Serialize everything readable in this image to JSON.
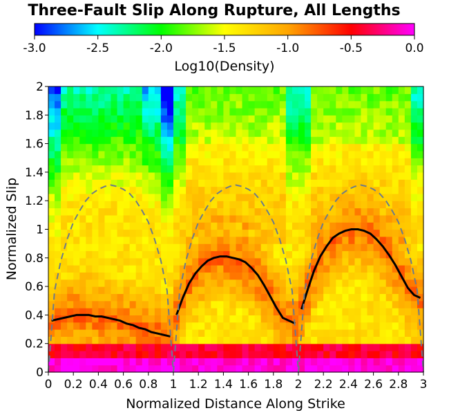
{
  "chart_data": {
    "type": "heatmap",
    "title": "Three-Fault Slip Along Rupture, All Lengths",
    "xlabel": "Normalized Distance Along Strike",
    "ylabel": "Normalized Slip",
    "xlim": [
      0,
      3
    ],
    "ylim": [
      0,
      2
    ],
    "x_ticks": [
      "0",
      "0.2",
      "0.4",
      "0.6",
      "0.8",
      "1",
      "1.2",
      "1.4",
      "1.6",
      "1.8",
      "2",
      "2.2",
      "2.4",
      "2.6",
      "2.8",
      "3"
    ],
    "y_ticks": [
      "0",
      "0.2",
      "0.4",
      "0.6",
      "0.8",
      "1",
      "1.2",
      "1.4",
      "1.6",
      "1.8",
      "2"
    ],
    "grid": false,
    "colorbar": {
      "label": "Log10(Density)",
      "range": [
        -3.0,
        0.0
      ],
      "ticks": [
        "-3.0",
        "-2.5",
        "-2.0",
        "-1.5",
        "-1.0",
        "-0.5",
        "0.0"
      ],
      "placement": "top",
      "colormap": [
        "#0000ff",
        "#00ffff",
        "#00ff00",
        "#ffff00",
        "#ffa500",
        "#ff0000",
        "#ff00ff"
      ]
    },
    "segments": [
      {
        "x0": 0,
        "x1": 1
      },
      {
        "x0": 1,
        "x1": 2
      },
      {
        "x0": 2,
        "x1": 3
      }
    ],
    "series": [
      {
        "style": "solid",
        "color": "#000000",
        "x": [
          0.025,
          0.075,
          0.125,
          0.175,
          0.225,
          0.275,
          0.325,
          0.375,
          0.425,
          0.475,
          0.525,
          0.575,
          0.625,
          0.675,
          0.725,
          0.775,
          0.825,
          0.875,
          0.925,
          0.975,
          1.025,
          1.075,
          1.125,
          1.175,
          1.225,
          1.275,
          1.325,
          1.375,
          1.425,
          1.475,
          1.525,
          1.575,
          1.625,
          1.675,
          1.725,
          1.775,
          1.825,
          1.875,
          1.925,
          1.975,
          2.025,
          2.075,
          2.125,
          2.175,
          2.225,
          2.275,
          2.325,
          2.375,
          2.425,
          2.475,
          2.525,
          2.575,
          2.625,
          2.675,
          2.725,
          2.775,
          2.825,
          2.875,
          2.925,
          2.975
        ],
        "y": [
          0.36,
          0.37,
          0.38,
          0.39,
          0.4,
          0.4,
          0.4,
          0.39,
          0.39,
          0.38,
          0.37,
          0.36,
          0.34,
          0.33,
          0.31,
          0.3,
          0.28,
          0.27,
          0.26,
          0.25,
          0.4,
          0.52,
          0.62,
          0.69,
          0.74,
          0.78,
          0.8,
          0.81,
          0.81,
          0.8,
          0.79,
          0.77,
          0.73,
          0.68,
          0.61,
          0.53,
          0.45,
          0.38,
          0.36,
          0.34,
          0.44,
          0.58,
          0.71,
          0.81,
          0.88,
          0.94,
          0.97,
          0.99,
          1.0,
          1.0,
          0.99,
          0.97,
          0.93,
          0.88,
          0.82,
          0.75,
          0.67,
          0.59,
          0.54,
          0.52
        ]
      },
      {
        "style": "dashed",
        "color": "#6b7b8c",
        "x": [
          0.0,
          0.05,
          0.1,
          0.15,
          0.2,
          0.25,
          0.3,
          0.35,
          0.4,
          0.45,
          0.5,
          0.55,
          0.6,
          0.65,
          0.7,
          0.75,
          0.8,
          0.85,
          0.9,
          0.95,
          1.0,
          1.05,
          1.1,
          1.15,
          1.2,
          1.25,
          1.3,
          1.35,
          1.4,
          1.45,
          1.5,
          1.55,
          1.6,
          1.65,
          1.7,
          1.75,
          1.8,
          1.85,
          1.9,
          1.95,
          2.0,
          2.05,
          2.1,
          2.15,
          2.2,
          2.25,
          2.3,
          2.35,
          2.4,
          2.45,
          2.5,
          2.55,
          2.6,
          2.65,
          2.7,
          2.75,
          2.8,
          2.85,
          2.9,
          2.95,
          3.0
        ],
        "y": [
          0.0,
          0.57,
          0.78,
          0.93,
          1.05,
          1.13,
          1.2,
          1.25,
          1.28,
          1.3,
          1.31,
          1.3,
          1.28,
          1.25,
          1.2,
          1.13,
          1.05,
          0.93,
          0.78,
          0.57,
          0.0,
          0.57,
          0.78,
          0.93,
          1.05,
          1.13,
          1.2,
          1.25,
          1.28,
          1.3,
          1.31,
          1.3,
          1.28,
          1.25,
          1.2,
          1.13,
          1.05,
          0.93,
          0.78,
          0.57,
          0.0,
          0.57,
          0.78,
          0.93,
          1.05,
          1.13,
          1.2,
          1.25,
          1.28,
          1.3,
          1.31,
          1.3,
          1.28,
          1.25,
          1.2,
          1.13,
          1.05,
          0.93,
          0.78,
          0.57,
          0.0
        ]
      }
    ]
  }
}
